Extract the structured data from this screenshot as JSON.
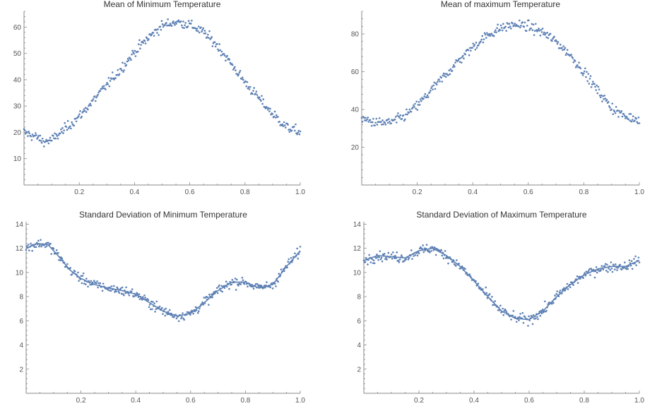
{
  "charts": [
    {
      "type": "scatter",
      "title": "Mean of Minimum Temperature",
      "xticks": [
        "0.2",
        "0.4",
        "0.6",
        "0.8",
        "1.0"
      ],
      "yticks": [
        "10",
        "20",
        "30",
        "40",
        "50",
        "60"
      ],
      "xlim": [
        0,
        1
      ],
      "ylim": [
        0,
        66
      ],
      "color": "#5e81b5",
      "fit_line": false,
      "point_count": 360,
      "series": [
        {
          "x": [
            0.0,
            0.05,
            0.07,
            0.1,
            0.15,
            0.2,
            0.25,
            0.3,
            0.35,
            0.4,
            0.45,
            0.5,
            0.55,
            0.6,
            0.65,
            0.7,
            0.75,
            0.8,
            0.85,
            0.9,
            0.95,
            1.0
          ],
          "y": [
            20,
            18,
            16.5,
            17,
            21.5,
            26,
            32,
            38,
            44,
            50.5,
            56,
            60.5,
            62,
            61,
            58,
            53,
            46,
            39,
            33,
            27,
            22,
            20
          ]
        }
      ],
      "noise": 0.6
    },
    {
      "type": "scatter",
      "title": "Mean of maximum Temperature",
      "xticks": [
        "0.2",
        "0.4",
        "0.6",
        "0.8",
        "1.0"
      ],
      "yticks": [
        "20",
        "40",
        "60",
        "80"
      ],
      "xlim": [
        0,
        1
      ],
      "ylim": [
        0,
        92
      ],
      "color": "#5e81b5",
      "fit_line": false,
      "point_count": 360,
      "series": [
        {
          "x": [
            0.0,
            0.05,
            0.1,
            0.15,
            0.2,
            0.25,
            0.3,
            0.35,
            0.4,
            0.45,
            0.5,
            0.55,
            0.6,
            0.65,
            0.7,
            0.75,
            0.8,
            0.85,
            0.9,
            0.95,
            1.0
          ],
          "y": [
            35,
            33,
            33,
            36,
            42,
            50,
            58,
            66,
            73,
            79,
            83,
            85,
            84,
            81,
            76,
            69,
            60,
            50,
            41,
            36,
            35
          ]
        }
      ],
      "noise": 0.6
    },
    {
      "type": "scatter",
      "title": "Standard Deviation of Minimum Temperature",
      "xticks": [
        "0.2",
        "0.4",
        "0.6",
        "0.8",
        "1.0"
      ],
      "yticks": [
        "2",
        "4",
        "6",
        "8",
        "10",
        "12",
        "14"
      ],
      "xlim": [
        0,
        1
      ],
      "ylim": [
        0,
        14.2
      ],
      "color": "#5e81b5",
      "fit_line": true,
      "point_count": 360,
      "series": [
        {
          "x": [
            0.0,
            0.04,
            0.08,
            0.12,
            0.16,
            0.2,
            0.25,
            0.3,
            0.35,
            0.4,
            0.45,
            0.5,
            0.55,
            0.6,
            0.65,
            0.7,
            0.75,
            0.8,
            0.85,
            0.9,
            0.95,
            1.0
          ],
          "y": [
            12,
            12.4,
            12.3,
            11.3,
            10.2,
            9.5,
            9.0,
            8.7,
            8.5,
            8.2,
            7.5,
            6.8,
            6.4,
            6.6,
            7.5,
            8.5,
            9.2,
            9.2,
            8.7,
            9.0,
            10.5,
            11.8
          ]
        }
      ],
      "noise": 0.6
    },
    {
      "type": "scatter",
      "title": "Standard Deviation of Maximum Temperature",
      "xticks": [
        "0.2",
        "0.4",
        "0.6",
        "0.8",
        "1.0"
      ],
      "yticks": [
        "2",
        "4",
        "6",
        "8",
        "10",
        "12",
        "14"
      ],
      "xlim": [
        0,
        1
      ],
      "ylim": [
        0,
        14.2
      ],
      "color": "#5e81b5",
      "fit_line": true,
      "point_count": 360,
      "series": [
        {
          "x": [
            0.0,
            0.05,
            0.1,
            0.15,
            0.2,
            0.25,
            0.3,
            0.35,
            0.4,
            0.45,
            0.5,
            0.55,
            0.6,
            0.65,
            0.7,
            0.75,
            0.8,
            0.85,
            0.9,
            0.95,
            1.0
          ],
          "y": [
            11,
            11.4,
            11.3,
            11.2,
            11.8,
            12.0,
            11.4,
            10.5,
            9.3,
            8.0,
            6.8,
            6.2,
            6.1,
            6.8,
            8.0,
            9.0,
            9.8,
            10.3,
            10.5,
            10.5,
            11.0
          ]
        }
      ],
      "noise": 0.6
    }
  ]
}
